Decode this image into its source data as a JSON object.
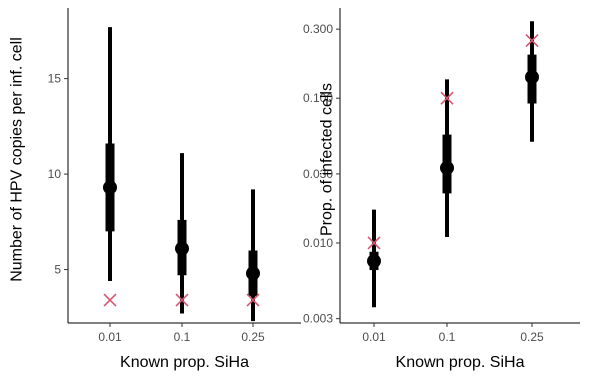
{
  "chart_data": [
    {
      "type": "pointrange",
      "xlabel": "Known prop. SiHa",
      "ylabel": "Number of HPV copies per inf. cell",
      "categories": [
        "0.01",
        "0.1",
        "0.25"
      ],
      "yscale": "linear",
      "ylim": [
        2.2,
        18.7
      ],
      "yticks": [
        5,
        10,
        15
      ],
      "ytick_labels": [
        "5",
        "10",
        "15"
      ],
      "estimate": [
        9.3,
        6.1,
        4.8
      ],
      "inner_interval": [
        [
          7.0,
          11.6
        ],
        [
          4.7,
          7.6
        ],
        [
          3.6,
          6.0
        ]
      ],
      "outer_interval": [
        [
          4.4,
          17.7
        ],
        [
          2.7,
          11.1
        ],
        [
          2.3,
          9.2
        ]
      ],
      "true_value": [
        3.4,
        3.4,
        3.4
      ],
      "grid": false
    },
    {
      "type": "pointrange",
      "xlabel": "Known prop. SiHa",
      "ylabel": "Prop. of infected cells",
      "categories": [
        "0.01",
        "0.1",
        "0.25"
      ],
      "yscale": "log10",
      "ylim": [
        0.0028,
        0.42
      ],
      "yticks": [
        0.003,
        0.01,
        0.03,
        0.1,
        0.3
      ],
      "ytick_labels": [
        "0.003",
        "0.010",
        "0.030",
        "0.100",
        "0.300"
      ],
      "estimate": [
        0.0075,
        0.033,
        0.14
      ],
      "inner_interval": [
        [
          0.0065,
          0.0087
        ],
        [
          0.022,
          0.056
        ],
        [
          0.092,
          0.2
        ]
      ],
      "outer_interval": [
        [
          0.0036,
          0.017
        ],
        [
          0.011,
          0.135
        ],
        [
          0.05,
          0.34
        ]
      ],
      "true_value": [
        0.01,
        0.1,
        0.25
      ],
      "grid": false
    }
  ],
  "colors": {
    "estimate": "#000000",
    "true_value": "#d9566f",
    "axis": "#000000",
    "tick_text": "#4d4d4d"
  }
}
